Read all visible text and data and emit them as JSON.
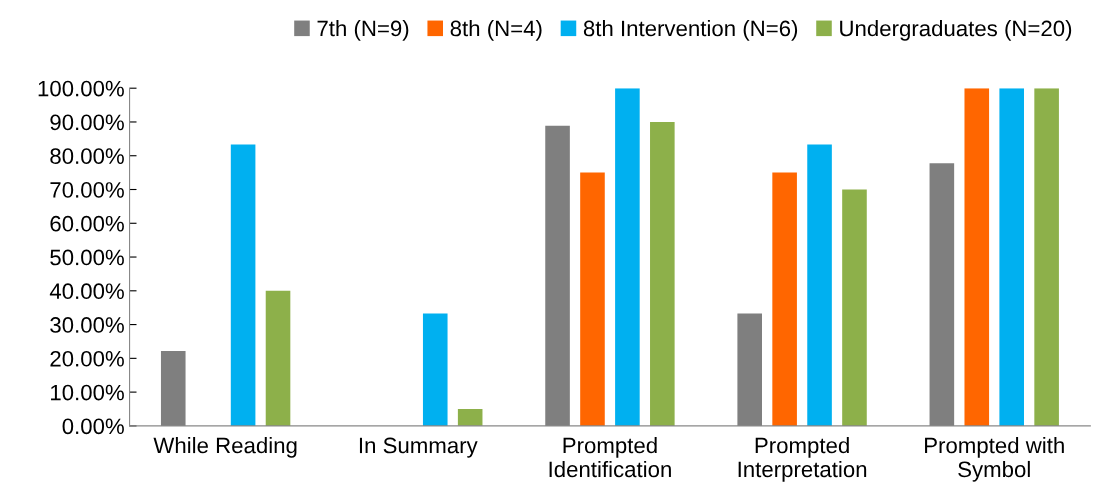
{
  "chart_data": {
    "type": "bar",
    "categories": [
      "While Reading",
      "In Summary",
      "Prompted\nIdentification",
      "Prompted\nInterpretation",
      "Prompted with\nSymbol"
    ],
    "series": [
      {
        "name": "7th (N=9)",
        "color": "#7f7f7f",
        "values": [
          22.2,
          0,
          88.9,
          33.3,
          77.8
        ]
      },
      {
        "name": "8th (N=4)",
        "color": "#ff6600",
        "values": [
          0,
          0,
          75,
          75,
          100
        ]
      },
      {
        "name": "8th Intervention (N=6)",
        "color": "#00b0f0",
        "values": [
          83.3,
          33.3,
          100,
          83.3,
          100
        ]
      },
      {
        "name": "Undergraduates (N=20)",
        "color": "#8db04a",
        "values": [
          40,
          5,
          90,
          70,
          100
        ]
      }
    ],
    "ylim": [
      0,
      100
    ],
    "yticks": [
      {
        "value": 0,
        "label": "0.00%"
      },
      {
        "value": 10,
        "label": "10.00%"
      },
      {
        "value": 20,
        "label": "20.00%"
      },
      {
        "value": 30,
        "label": "30.00%"
      },
      {
        "value": 40,
        "label": "40.00%"
      },
      {
        "value": 50,
        "label": "50.00%"
      },
      {
        "value": 60,
        "label": "60.00%"
      },
      {
        "value": 70,
        "label": "70.00%"
      },
      {
        "value": 80,
        "label": "80.00%"
      },
      {
        "value": 90,
        "label": "90.00%"
      },
      {
        "value": 100,
        "label": "100.00%"
      }
    ],
    "grid": false,
    "legend": "top right"
  }
}
